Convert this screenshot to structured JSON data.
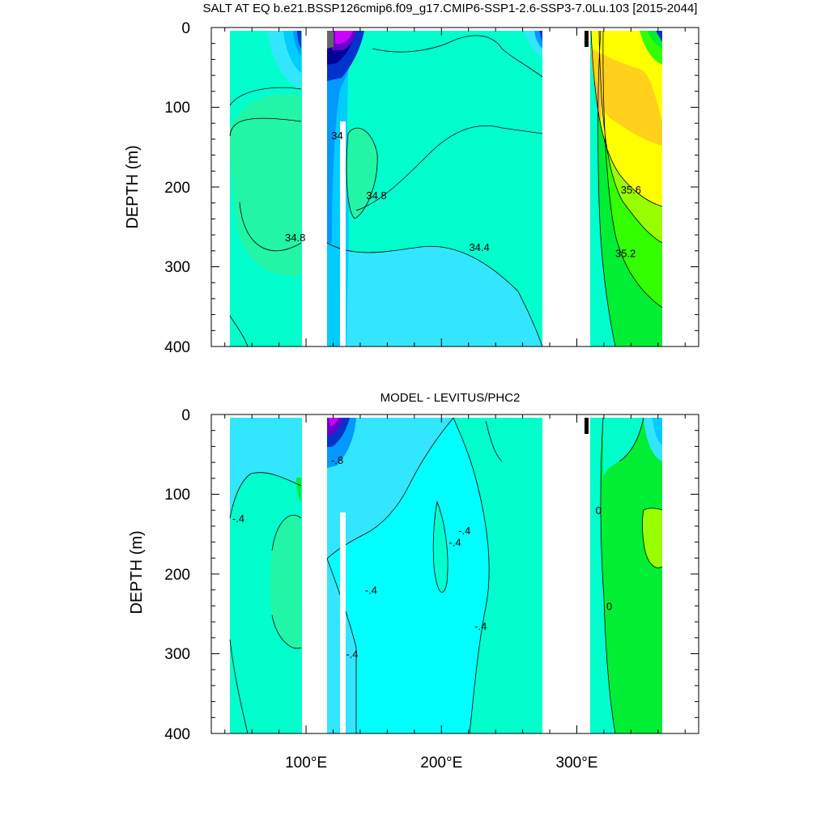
{
  "colors": {
    "cyan": "#00ffff",
    "light_cyan": "#33e6ff",
    "sky": "#00ccff",
    "aqua_green": "#00ffcc",
    "sea_green": "#22f5a6",
    "green": "#00ee33",
    "bright_green": "#33ff00",
    "lime": "#99ff00",
    "yellow": "#ffff00",
    "gold": "#ffd11a",
    "orange": "#ffb84d",
    "blue": "#0099ff",
    "deep_blue": "#0033cc",
    "navy": "#000099",
    "purple": "#6600cc",
    "magenta": "#cc00ff",
    "grey": "#666666",
    "land": "#ffffff"
  },
  "chart_data": [
    {
      "type": "contour",
      "title": "SALT AT EQ b.e21.BSSP126cmip6.f09_g17.CMIP6-SSP1-2.6-SSP3-7.0Lu.103 [2015-2044]",
      "xlabel": "",
      "ylabel": "DEPTH (m)",
      "xlim": [
        30,
        390
      ],
      "ylim": [
        400,
        0
      ],
      "yticks": [
        "0",
        "100",
        "200",
        "300",
        "400"
      ],
      "land_gaps_lon": [
        [
          30,
          45
        ],
        [
          97,
          117
        ],
        [
          279,
          314
        ],
        [
          369,
          390
        ]
      ],
      "contour_labels": [
        {
          "text": "34",
          "lon": 123,
          "depth": 140
        },
        {
          "text": "34.8",
          "lon": 152,
          "depth": 215
        },
        {
          "text": "34.8",
          "lon": 92,
          "depth": 268
        },
        {
          "text": "34.4",
          "lon": 228,
          "depth": 280
        },
        {
          "text": "35.6",
          "lon": 340,
          "depth": 208
        },
        {
          "text": "35.2",
          "lon": 336,
          "depth": 288
        }
      ]
    },
    {
      "type": "contour",
      "title": "MODEL - LEVITUS/PHC2",
      "xlabel": "",
      "ylabel": "DEPTH (m)",
      "xlim": [
        30,
        390
      ],
      "ylim": [
        400,
        0
      ],
      "xticks": [
        "100°E",
        "200°E",
        "300°E"
      ],
      "yticks": [
        "0",
        "100",
        "200",
        "300",
        "400"
      ],
      "land_gaps_lon": [
        [
          30,
          45
        ],
        [
          97,
          117
        ],
        [
          279,
          314
        ],
        [
          369,
          390
        ]
      ],
      "contour_labels": [
        {
          "text": "-.8",
          "lon": 123,
          "depth": 62
        },
        {
          "text": "-.4",
          "lon": 50,
          "depth": 135
        },
        {
          "text": "-.4",
          "lon": 210,
          "depth": 165
        },
        {
          "text": "-.4",
          "lon": 217,
          "depth": 150
        },
        {
          "text": "-.4",
          "lon": 148,
          "depth": 225
        },
        {
          "text": "-.4",
          "lon": 229,
          "depth": 270
        },
        {
          "text": "-.4",
          "lon": 134,
          "depth": 305
        },
        {
          "text": "0",
          "lon": 316,
          "depth": 125
        },
        {
          "text": "0",
          "lon": 324,
          "depth": 245
        }
      ]
    }
  ]
}
